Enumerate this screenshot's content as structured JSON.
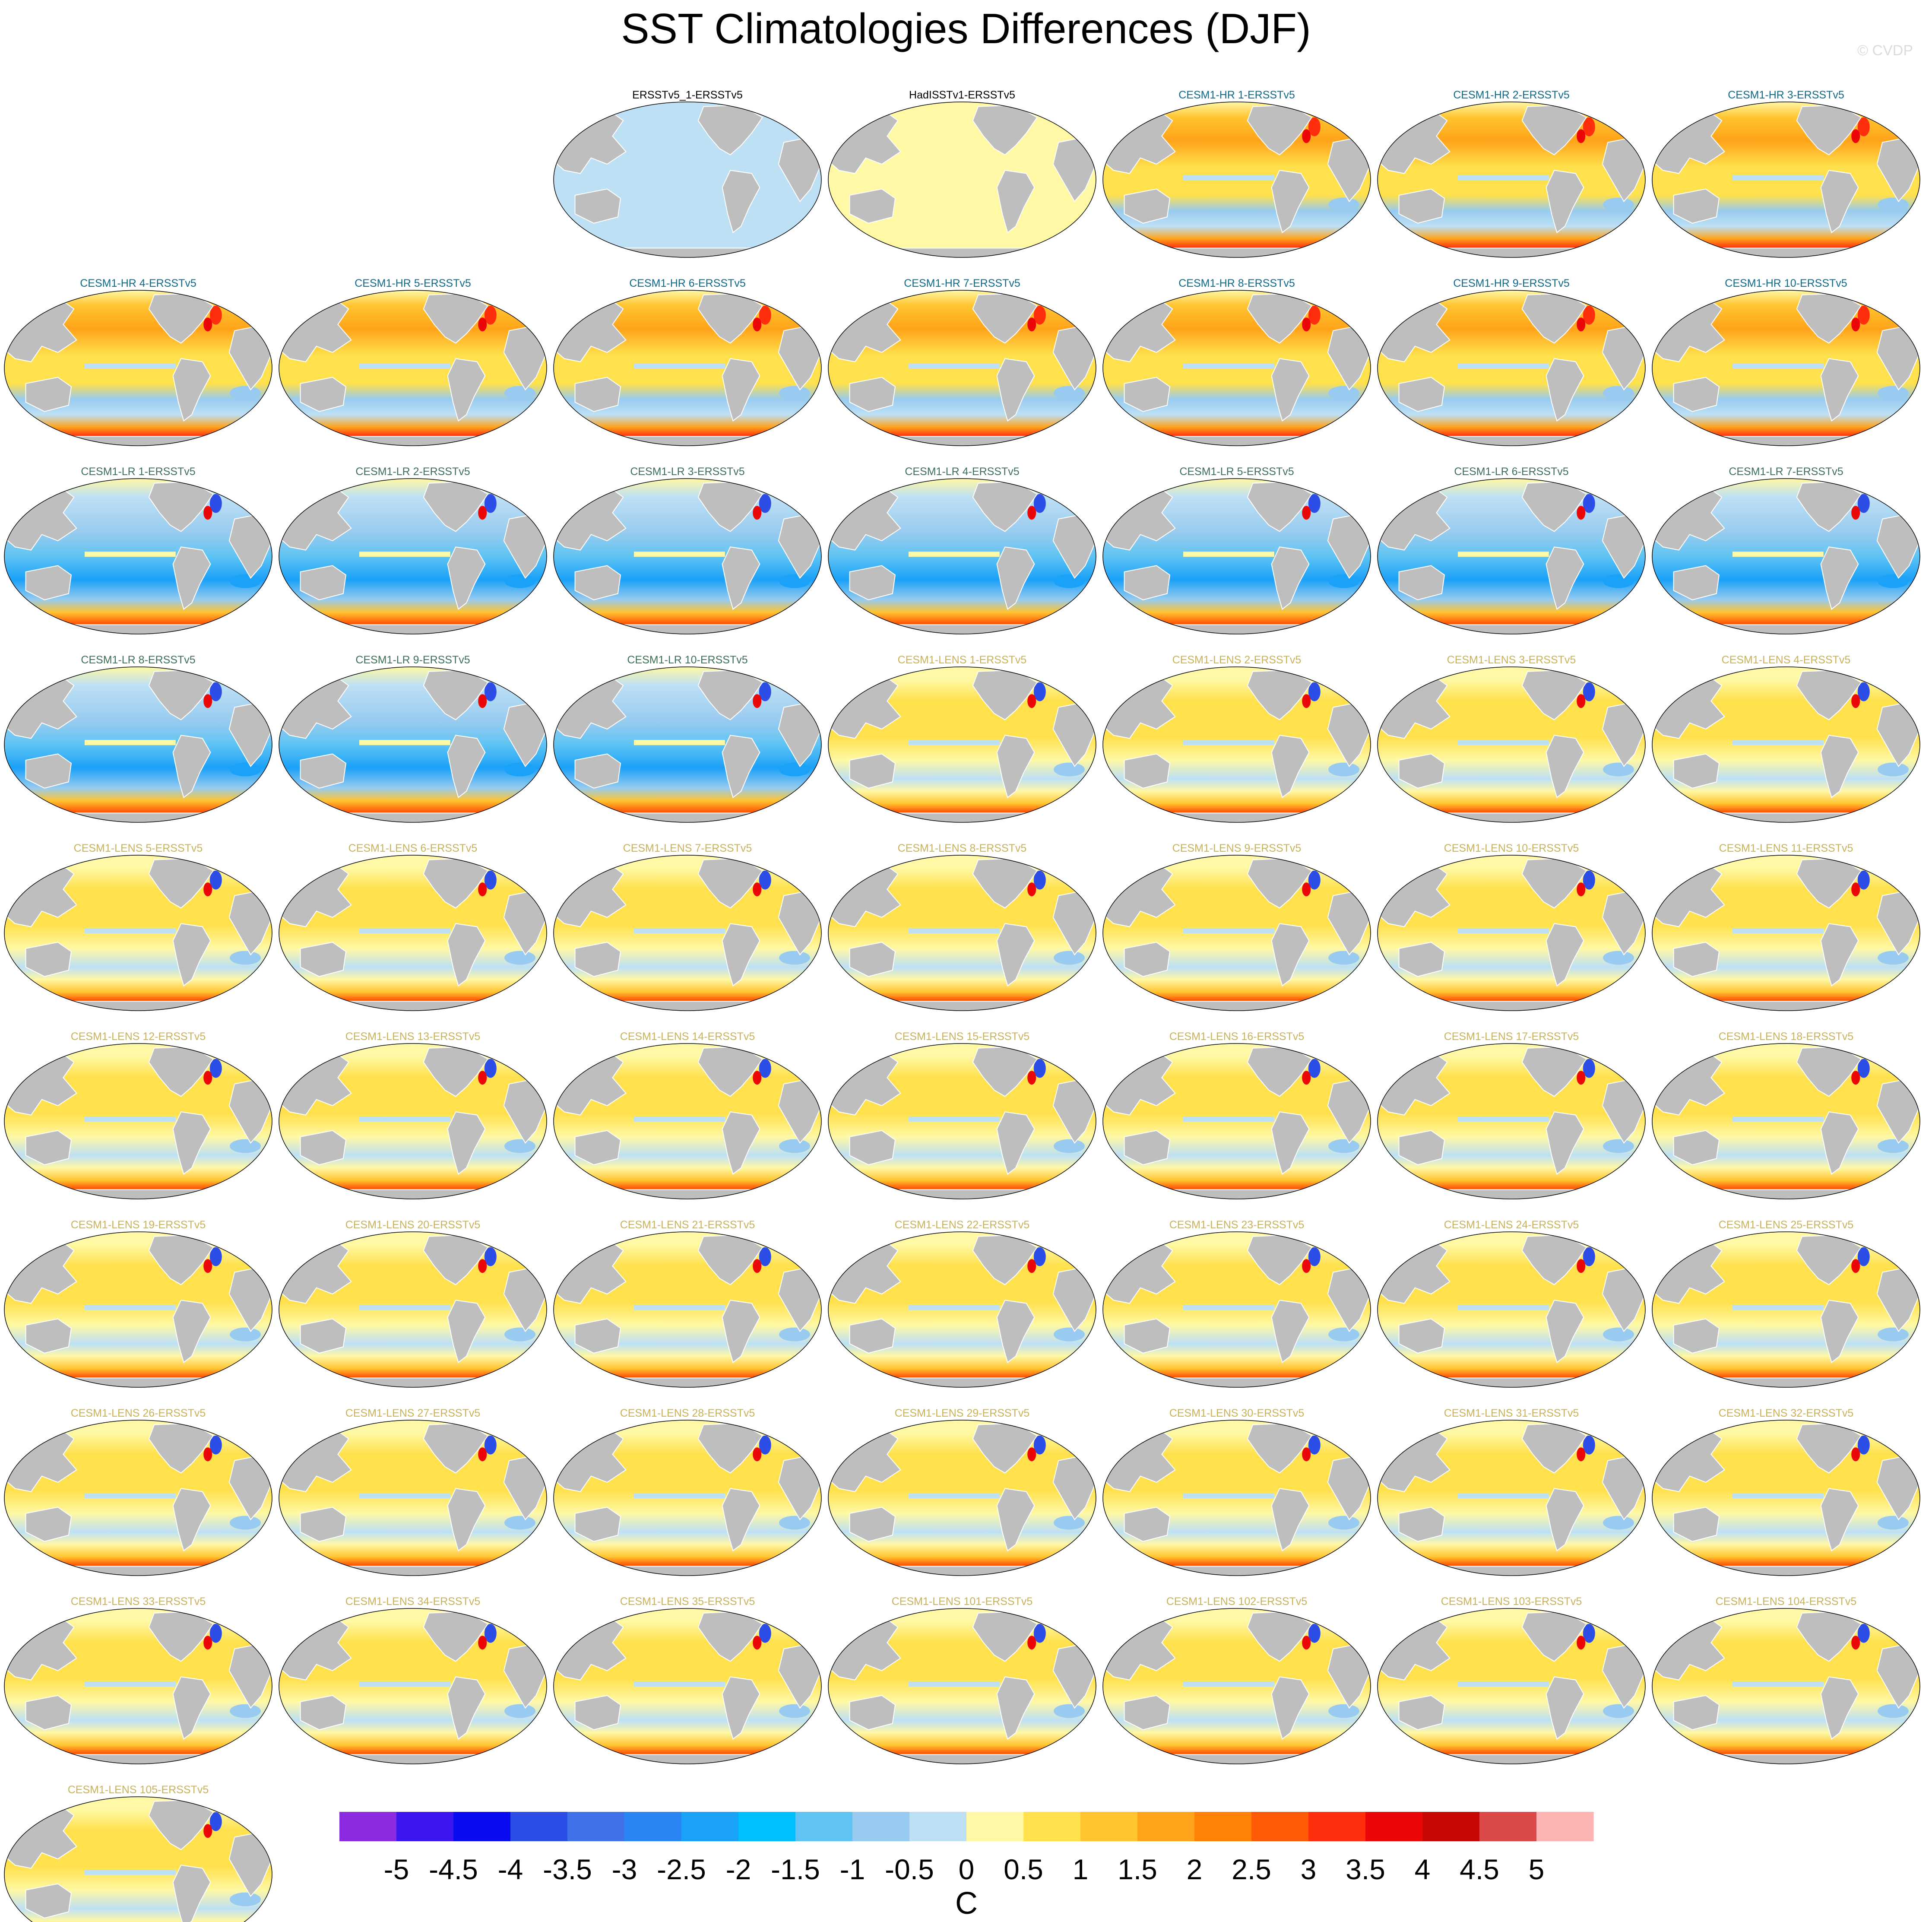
{
  "title": "SST Climatologies Differences (DJF)",
  "credit": "© CVDP",
  "chart_data": {
    "type": "heatmap",
    "projection": "robinson-like global map, Pacific-centered",
    "layout": {
      "rows": 9,
      "columns": 7,
      "first_row_starts_at_column": 2
    },
    "land_color": "#bebebe",
    "title_colors": {
      "observations": "#000000",
      "CESM1-HR": "#0e6a8a",
      "CESM1-LR": "#3d7058",
      "CESM1-LENS": "#c9b25a"
    },
    "panels": [
      {
        "title": "ERSSTv5_1-ERSSTv5",
        "group": "observations",
        "pattern": "zero-negative"
      },
      {
        "title": "HadISSTv1-ERSSTv5",
        "group": "observations",
        "pattern": "zero-positive"
      },
      {
        "title": "CESM1-HR 1-ERSSTv5",
        "group": "CESM1-HR",
        "pattern": "hr"
      },
      {
        "title": "CESM1-HR 2-ERSSTv5",
        "group": "CESM1-HR",
        "pattern": "hr"
      },
      {
        "title": "CESM1-HR 3-ERSSTv5",
        "group": "CESM1-HR",
        "pattern": "hr"
      },
      {
        "title": "CESM1-HR 4-ERSSTv5",
        "group": "CESM1-HR",
        "pattern": "hr"
      },
      {
        "title": "CESM1-HR 5-ERSSTv5",
        "group": "CESM1-HR",
        "pattern": "hr"
      },
      {
        "title": "CESM1-HR 6-ERSSTv5",
        "group": "CESM1-HR",
        "pattern": "hr"
      },
      {
        "title": "CESM1-HR 7-ERSSTv5",
        "group": "CESM1-HR",
        "pattern": "hr"
      },
      {
        "title": "CESM1-HR 8-ERSSTv5",
        "group": "CESM1-HR",
        "pattern": "hr"
      },
      {
        "title": "CESM1-HR 9-ERSSTv5",
        "group": "CESM1-HR",
        "pattern": "hr"
      },
      {
        "title": "CESM1-HR 10-ERSSTv5",
        "group": "CESM1-HR",
        "pattern": "hr"
      },
      {
        "title": "CESM1-LR 1-ERSSTv5",
        "group": "CESM1-LR",
        "pattern": "lr"
      },
      {
        "title": "CESM1-LR 2-ERSSTv5",
        "group": "CESM1-LR",
        "pattern": "lr"
      },
      {
        "title": "CESM1-LR 3-ERSSTv5",
        "group": "CESM1-LR",
        "pattern": "lr"
      },
      {
        "title": "CESM1-LR 4-ERSSTv5",
        "group": "CESM1-LR",
        "pattern": "lr"
      },
      {
        "title": "CESM1-LR 5-ERSSTv5",
        "group": "CESM1-LR",
        "pattern": "lr"
      },
      {
        "title": "CESM1-LR 6-ERSSTv5",
        "group": "CESM1-LR",
        "pattern": "lr"
      },
      {
        "title": "CESM1-LR 7-ERSSTv5",
        "group": "CESM1-LR",
        "pattern": "lr"
      },
      {
        "title": "CESM1-LR 8-ERSSTv5",
        "group": "CESM1-LR",
        "pattern": "lr"
      },
      {
        "title": "CESM1-LR 9-ERSSTv5",
        "group": "CESM1-LR",
        "pattern": "lr"
      },
      {
        "title": "CESM1-LR 10-ERSSTv5",
        "group": "CESM1-LR",
        "pattern": "lr"
      },
      {
        "title": "CESM1-LENS 1-ERSSTv5",
        "group": "CESM1-LENS",
        "pattern": "lens"
      },
      {
        "title": "CESM1-LENS 2-ERSSTv5",
        "group": "CESM1-LENS",
        "pattern": "lens"
      },
      {
        "title": "CESM1-LENS 3-ERSSTv5",
        "group": "CESM1-LENS",
        "pattern": "lens"
      },
      {
        "title": "CESM1-LENS 4-ERSSTv5",
        "group": "CESM1-LENS",
        "pattern": "lens"
      },
      {
        "title": "CESM1-LENS 5-ERSSTv5",
        "group": "CESM1-LENS",
        "pattern": "lens"
      },
      {
        "title": "CESM1-LENS 6-ERSSTv5",
        "group": "CESM1-LENS",
        "pattern": "lens"
      },
      {
        "title": "CESM1-LENS 7-ERSSTv5",
        "group": "CESM1-LENS",
        "pattern": "lens"
      },
      {
        "title": "CESM1-LENS 8-ERSSTv5",
        "group": "CESM1-LENS",
        "pattern": "lens"
      },
      {
        "title": "CESM1-LENS 9-ERSSTv5",
        "group": "CESM1-LENS",
        "pattern": "lens"
      },
      {
        "title": "CESM1-LENS 10-ERSSTv5",
        "group": "CESM1-LENS",
        "pattern": "lens"
      },
      {
        "title": "CESM1-LENS 11-ERSSTv5",
        "group": "CESM1-LENS",
        "pattern": "lens"
      },
      {
        "title": "CESM1-LENS 12-ERSSTv5",
        "group": "CESM1-LENS",
        "pattern": "lens"
      },
      {
        "title": "CESM1-LENS 13-ERSSTv5",
        "group": "CESM1-LENS",
        "pattern": "lens"
      },
      {
        "title": "CESM1-LENS 14-ERSSTv5",
        "group": "CESM1-LENS",
        "pattern": "lens"
      },
      {
        "title": "CESM1-LENS 15-ERSSTv5",
        "group": "CESM1-LENS",
        "pattern": "lens"
      },
      {
        "title": "CESM1-LENS 16-ERSSTv5",
        "group": "CESM1-LENS",
        "pattern": "lens"
      },
      {
        "title": "CESM1-LENS 17-ERSSTv5",
        "group": "CESM1-LENS",
        "pattern": "lens"
      },
      {
        "title": "CESM1-LENS 18-ERSSTv5",
        "group": "CESM1-LENS",
        "pattern": "lens"
      },
      {
        "title": "CESM1-LENS 19-ERSSTv5",
        "group": "CESM1-LENS",
        "pattern": "lens"
      },
      {
        "title": "CESM1-LENS 20-ERSSTv5",
        "group": "CESM1-LENS",
        "pattern": "lens"
      },
      {
        "title": "CESM1-LENS 21-ERSSTv5",
        "group": "CESM1-LENS",
        "pattern": "lens"
      },
      {
        "title": "CESM1-LENS 22-ERSSTv5",
        "group": "CESM1-LENS",
        "pattern": "lens"
      },
      {
        "title": "CESM1-LENS 23-ERSSTv5",
        "group": "CESM1-LENS",
        "pattern": "lens"
      },
      {
        "title": "CESM1-LENS 24-ERSSTv5",
        "group": "CESM1-LENS",
        "pattern": "lens"
      },
      {
        "title": "CESM1-LENS 25-ERSSTv5",
        "group": "CESM1-LENS",
        "pattern": "lens"
      },
      {
        "title": "CESM1-LENS 26-ERSSTv5",
        "group": "CESM1-LENS",
        "pattern": "lens"
      },
      {
        "title": "CESM1-LENS 27-ERSSTv5",
        "group": "CESM1-LENS",
        "pattern": "lens"
      },
      {
        "title": "CESM1-LENS 28-ERSSTv5",
        "group": "CESM1-LENS",
        "pattern": "lens"
      },
      {
        "title": "CESM1-LENS 29-ERSSTv5",
        "group": "CESM1-LENS",
        "pattern": "lens"
      },
      {
        "title": "CESM1-LENS 30-ERSSTv5",
        "group": "CESM1-LENS",
        "pattern": "lens"
      },
      {
        "title": "CESM1-LENS 31-ERSSTv5",
        "group": "CESM1-LENS",
        "pattern": "lens"
      },
      {
        "title": "CESM1-LENS 32-ERSSTv5",
        "group": "CESM1-LENS",
        "pattern": "lens"
      },
      {
        "title": "CESM1-LENS 33-ERSSTv5",
        "group": "CESM1-LENS",
        "pattern": "lens"
      },
      {
        "title": "CESM1-LENS 34-ERSSTv5",
        "group": "CESM1-LENS",
        "pattern": "lens"
      },
      {
        "title": "CESM1-LENS 35-ERSSTv5",
        "group": "CESM1-LENS",
        "pattern": "lens"
      },
      {
        "title": "CESM1-LENS 101-ERSSTv5",
        "group": "CESM1-LENS",
        "pattern": "lens"
      },
      {
        "title": "CESM1-LENS 102-ERSSTv5",
        "group": "CESM1-LENS",
        "pattern": "lens"
      },
      {
        "title": "CESM1-LENS 103-ERSSTv5",
        "group": "CESM1-LENS",
        "pattern": "lens"
      },
      {
        "title": "CESM1-LENS 104-ERSSTv5",
        "group": "CESM1-LENS",
        "pattern": "lens"
      },
      {
        "title": "CESM1-LENS 105-ERSSTv5",
        "group": "CESM1-LENS",
        "pattern": "lens"
      }
    ],
    "colorbar": {
      "unit": "C",
      "levels": [
        -5,
        -4.5,
        -4,
        -3.5,
        -3,
        -2.5,
        -2,
        -1.5,
        -1,
        -0.5,
        0,
        0.5,
        1,
        1.5,
        2,
        2.5,
        3,
        3.5,
        4,
        4.5,
        5
      ],
      "tick_labels": [
        "-5",
        "-4.5",
        "-4",
        "-3.5",
        "-3",
        "-2.5",
        "-2",
        "-1.5",
        "-1",
        "-0.5",
        "0",
        "0.5",
        "1",
        "1.5",
        "2",
        "2.5",
        "3",
        "3.5",
        "4",
        "4.5",
        "5"
      ],
      "colors": [
        "#8a2be2",
        "#3d15ef",
        "#0b0bf2",
        "#2d4ee6",
        "#3f72e8",
        "#2a86f5",
        "#1aa1f8",
        "#00bfff",
        "#5fc4f3",
        "#98cbef",
        "#bde0f5",
        "#fff8a4",
        "#ffe14d",
        "#ffc430",
        "#ffa31a",
        "#ff8105",
        "#ff5a06",
        "#ff2f0e",
        "#eb0707",
        "#c80707",
        "#dc4949",
        "#ffb4b4"
      ]
    }
  }
}
